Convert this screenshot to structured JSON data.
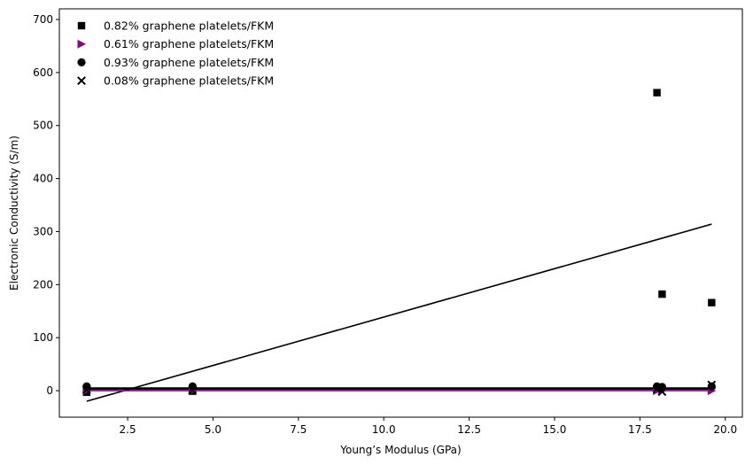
{
  "chart_data": {
    "type": "scatter",
    "xlabel": "Young’s Modulus (GPa)",
    "ylabel": "Electronic Conductivity (S/m)",
    "xlim": [
      0.5,
      20.5
    ],
    "ylim": [
      -50,
      720
    ],
    "xticks": [
      2.5,
      5.0,
      7.5,
      10.0,
      12.5,
      15.0,
      17.5,
      20.0
    ],
    "xtick_labels": [
      "2.5",
      "5.0",
      "7.5",
      "10.0",
      "12.5",
      "15.0",
      "17.5",
      "20.0"
    ],
    "yticks": [
      0,
      100,
      200,
      300,
      400,
      500,
      600,
      700
    ],
    "ytick_labels": [
      "0",
      "100",
      "200",
      "300",
      "400",
      "500",
      "600",
      "700"
    ],
    "grid": false,
    "legend_position": "top-left",
    "series": [
      {
        "name": "0.82% graphene platelets/FKM",
        "marker": "square",
        "color": "#000000",
        "points": [
          [
            1.3,
            -3
          ],
          [
            4.4,
            -1
          ],
          [
            18.0,
            562
          ],
          [
            18.15,
            182
          ],
          [
            19.6,
            166
          ]
        ],
        "fit": [
          [
            1.3,
            -20
          ],
          [
            19.6,
            314
          ]
        ]
      },
      {
        "name": "0.61% graphene platelets/FKM",
        "marker": "triangle-right",
        "color": "#7a0e7a",
        "points": [
          [
            1.3,
            0
          ],
          [
            4.4,
            0
          ],
          [
            18.0,
            0
          ],
          [
            18.15,
            0
          ],
          [
            19.6,
            0
          ]
        ],
        "fit": [
          [
            1.3,
            0
          ],
          [
            19.6,
            0
          ]
        ]
      },
      {
        "name": "0.93% graphene platelets/FKM",
        "marker": "circle",
        "color": "#000000",
        "points": [
          [
            1.3,
            8
          ],
          [
            4.4,
            8
          ],
          [
            18.0,
            8
          ],
          [
            18.15,
            7
          ],
          [
            19.6,
            8
          ]
        ],
        "fit": [
          [
            1.3,
            5
          ],
          [
            19.6,
            5
          ]
        ]
      },
      {
        "name": "0.08% graphene platelets/FKM",
        "marker": "x",
        "color": "#000000",
        "points": [
          [
            1.3,
            2
          ],
          [
            4.4,
            1
          ],
          [
            18.0,
            3
          ],
          [
            18.15,
            -2
          ],
          [
            19.6,
            11
          ]
        ],
        "fit": [
          [
            1.3,
            3
          ],
          [
            19.6,
            3
          ]
        ]
      }
    ]
  }
}
